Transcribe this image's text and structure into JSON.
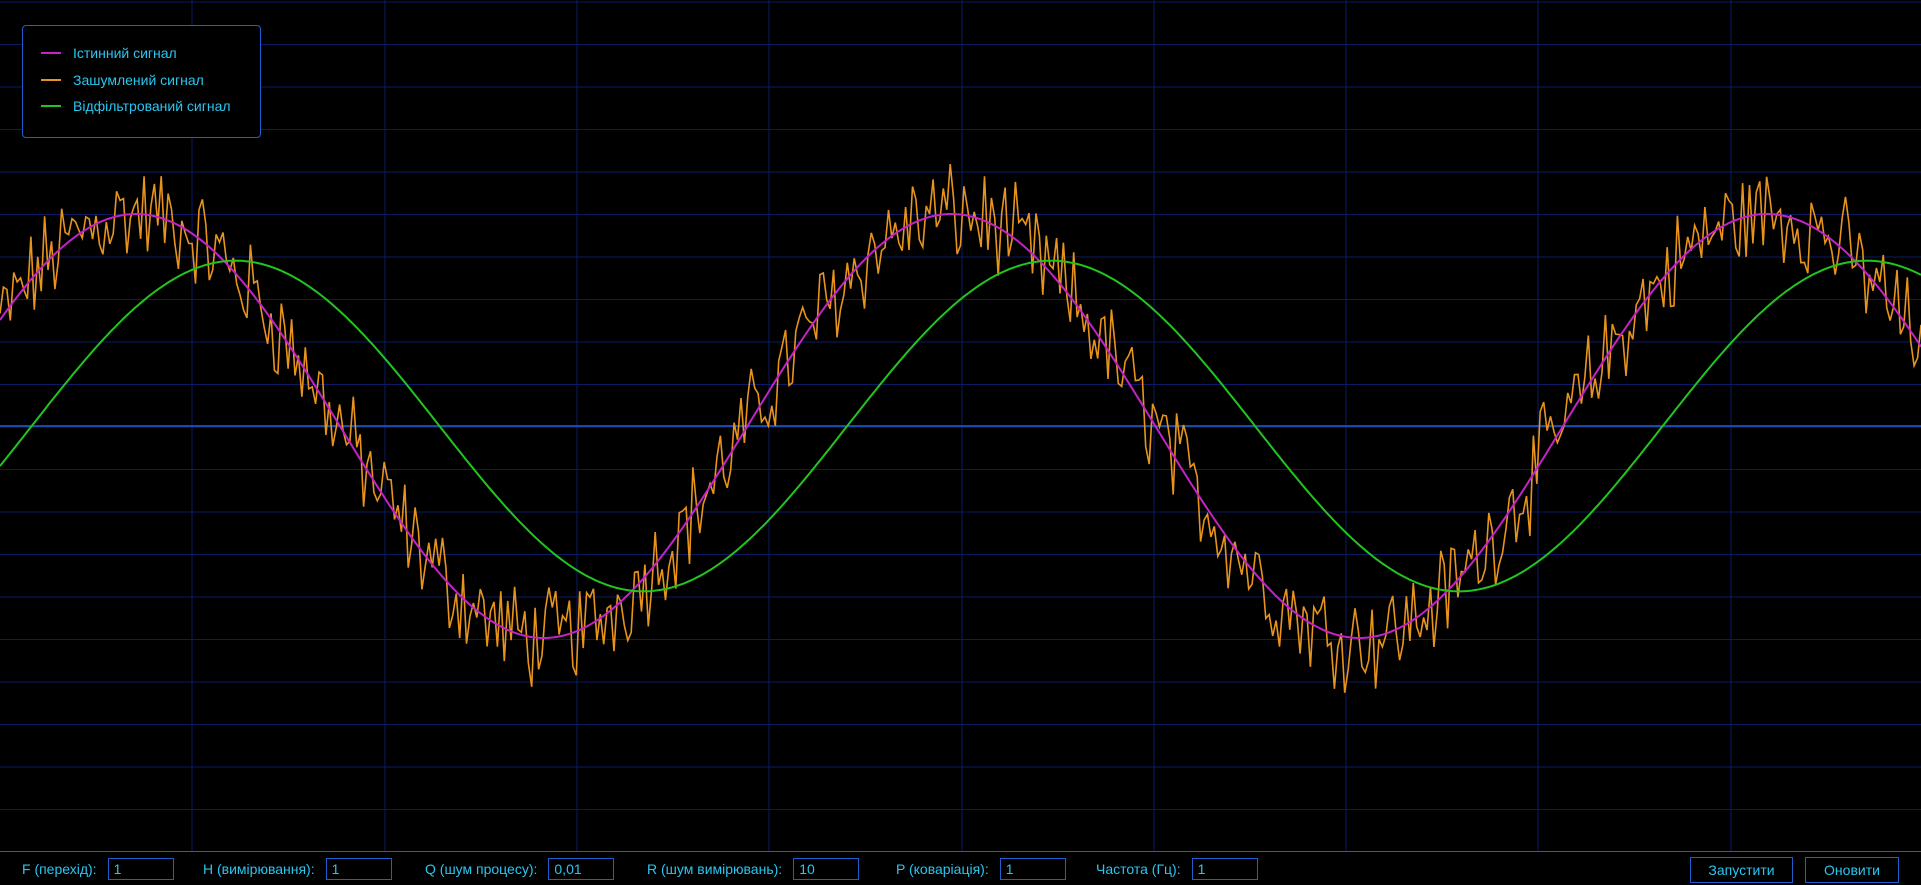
{
  "colors": {
    "background": "#000000",
    "grid": "#0b1a66",
    "axis": "#1e5fd0",
    "text": "#29c6f0",
    "true_signal": "#c323c7",
    "noisy_signal": "#e8941c",
    "filtered_signal": "#22c51f"
  },
  "legend": {
    "items": [
      {
        "label": "Істинний сигнал",
        "color": "#c323c7"
      },
      {
        "label": "Зашумлений сигнал",
        "color": "#e8941c"
      },
      {
        "label": "Відфільтрований сигнал",
        "color": "#22c51f"
      }
    ]
  },
  "controls": {
    "F": {
      "label": "F (перехід):",
      "value": "1"
    },
    "H": {
      "label": "H (вимірювання):",
      "value": "1"
    },
    "Q": {
      "label": "Q (шум процесу):",
      "value": "0,01"
    },
    "R": {
      "label": "R (шум вимірювань):",
      "value": "10"
    },
    "P": {
      "label": "P (коваріація):",
      "value": "1"
    },
    "freq": {
      "label": "Частота (Гц):",
      "value": "1"
    },
    "start_button": "Запустити",
    "update_button": "Оновити"
  },
  "chart_data": {
    "type": "line",
    "grid": true,
    "legend_position": "top-left",
    "series": [
      {
        "name": "Істинний сигнал",
        "kind": "sine",
        "amplitude": 1,
        "period": 0.9,
        "phase_peak": 0.15
      },
      {
        "name": "Зашумлений сигнал",
        "kind": "noisy",
        "noise_amplitude": 0.2
      },
      {
        "name": "Відфільтрований сигнал",
        "kind": "filtered",
        "lag": 0.11,
        "amplitude": 0.78
      }
    ]
  }
}
